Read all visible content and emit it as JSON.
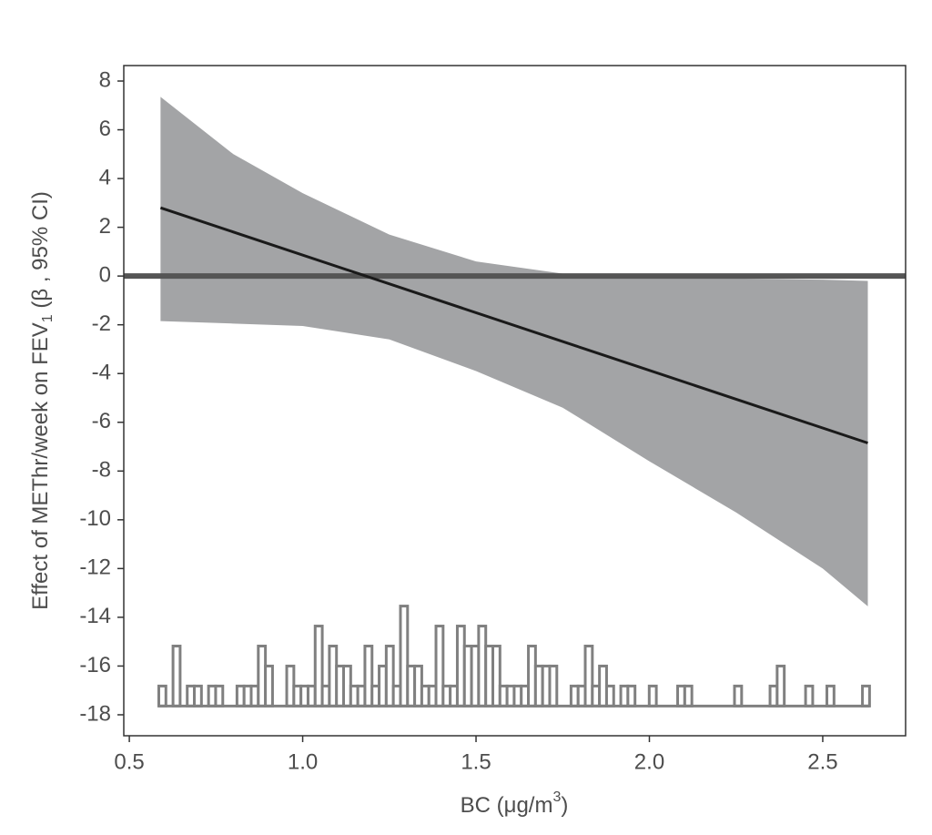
{
  "chart_data": {
    "type": "line",
    "xlabel": {
      "main": "BC (μg/m",
      "sup": "3",
      "end": ")"
    },
    "ylabel": {
      "main": "Effect of METhr/week on FEV",
      "sub": "1",
      "end": " (β , 95% CI)"
    },
    "xlim": [
      0.484,
      2.739
    ],
    "ylim": [
      -18.86,
      8.635
    ],
    "xticks": [
      0.5,
      {
        "value": 1,
        "label": "1.0"
      },
      1.5,
      {
        "value": 2,
        "label": "2.0"
      },
      2.5
    ],
    "yticks": [
      -18,
      -16,
      -14,
      -12,
      -10,
      -8,
      -6,
      -4,
      -2,
      0,
      2,
      4,
      6,
      8
    ],
    "hline": 0,
    "hline_color": "#555555",
    "line": {
      "x": [
        0.59,
        2.63
      ],
      "values": [
        2.8,
        -6.85
      ],
      "color": "#1a1a1a"
    },
    "band": {
      "x": [
        0.59,
        0.8,
        1.0,
        1.25,
        1.5,
        1.75,
        2.0,
        2.25,
        2.5,
        2.63
      ],
      "upper": [
        7.35,
        5.0,
        3.4,
        1.7,
        0.6,
        0.1,
        -0.05,
        -0.1,
        -0.15,
        -0.2
      ],
      "lower": [
        -1.85,
        -1.95,
        -2.05,
        -2.6,
        -3.9,
        -5.4,
        -7.6,
        -9.7,
        -12.0,
        -13.55
      ],
      "color": "#a3a4a6"
    },
    "histogram": {
      "color": "#808080",
      "baseline": -17.64,
      "bins": [
        0.585,
        0.6055,
        0.626,
        0.6465,
        0.667,
        0.6875,
        0.708,
        0.7285,
        0.749,
        0.7695,
        0.79,
        0.8105,
        0.831,
        0.8515,
        0.872,
        0.8925,
        0.913,
        0.9335,
        0.954,
        0.9745,
        0.995,
        1.0155,
        1.036,
        1.0565,
        1.077,
        1.0975,
        1.118,
        1.1385,
        1.159,
        1.1795,
        1.2,
        1.2205,
        1.241,
        1.2615,
        1.282,
        1.3025,
        1.323,
        1.3435,
        1.364,
        1.3845,
        1.405,
        1.4255,
        1.446,
        1.4665,
        1.487,
        1.5075,
        1.528,
        1.5485,
        1.569,
        1.5895,
        1.61,
        1.6305,
        1.651,
        1.6715,
        1.692,
        1.7125,
        1.733,
        1.7535,
        1.774,
        1.7945,
        1.815,
        1.8355,
        1.856,
        1.8765,
        1.897,
        1.9175,
        1.938,
        1.9585,
        1.979,
        1.9995,
        2.02,
        2.0405,
        2.061,
        2.0815,
        2.102,
        2.1225,
        2.143,
        2.1635,
        2.184,
        2.2045,
        2.225,
        2.2455,
        2.266,
        2.2865,
        2.307,
        2.3275,
        2.348,
        2.3685,
        2.389,
        2.4095,
        2.43,
        2.4505,
        2.471,
        2.4915,
        2.512,
        2.5325,
        2.553,
        2.5735,
        2.594,
        2.6145,
        2.635
      ],
      "values": [
        -16.82,
        null,
        -15.18,
        null,
        -16.82,
        -16.82,
        null,
        -16.82,
        -16.82,
        null,
        null,
        -16.82,
        -16.82,
        -16.82,
        -15.18,
        -16,
        null,
        null,
        -16,
        -16.82,
        -16.82,
        -16.82,
        -14.36,
        -16.82,
        -15.18,
        -16,
        -16,
        -16.82,
        -16.82,
        -15.18,
        -16.82,
        -16,
        -15.18,
        -16.82,
        -13.54,
        -16,
        -16,
        -16.82,
        -16.82,
        -14.36,
        -16.82,
        -16.82,
        -14.36,
        -15.18,
        -15.18,
        -14.36,
        -15.18,
        -15.18,
        -16.82,
        -16.82,
        -16.82,
        -16.82,
        -15.18,
        -16,
        -16,
        -16,
        null,
        null,
        -16.82,
        -16.82,
        -15.18,
        -16.82,
        -16,
        -16.82,
        null,
        -16.82,
        -16.82,
        null,
        null,
        -16.82,
        null,
        null,
        null,
        -16.82,
        -16.82,
        null,
        null,
        null,
        null,
        null,
        null,
        -16.82,
        null,
        null,
        null,
        null,
        -16.82,
        -16,
        null,
        null,
        null,
        -16.82,
        null,
        null,
        -16.82,
        null,
        null,
        null,
        null,
        -16.82
      ]
    }
  }
}
